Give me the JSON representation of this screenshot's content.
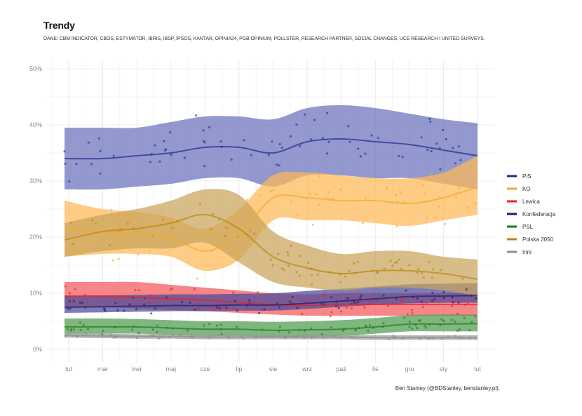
{
  "chart_data": {
    "type": "line",
    "title": "Trendy",
    "subtitle": "DANE: CBM INDICATOR, CBOS, ESTYMATOR, IBRIS, IBSP, IPSOS, KANTAR, OPINIA24, PGB OPINIUM, POLLSTER, RESEARCH PARTNER, SOCIAL CHANGES, UCE RESEARCH I UNITED SURVEYS.",
    "caption": "Ben Stanley (@BDStanley, benstanley.pl).",
    "xlabel": "",
    "ylabel": "",
    "x_ticks": [
      "lut",
      "mar",
      "kwi",
      "maj",
      "cze",
      "lip",
      "sie",
      "wrz",
      "paź",
      "lis",
      "gru",
      "sty",
      "lut"
    ],
    "y_ticks": [
      "0%",
      "10%",
      "20%",
      "30%",
      "40%",
      "50%"
    ],
    "ylim": [
      0,
      50
    ],
    "grid": true,
    "legend_position": "right",
    "series": [
      {
        "name": "PiS",
        "color": "#1f2a8a",
        "fill": "#6a71bb",
        "values": [
          34,
          34,
          34.5,
          35,
          36,
          36,
          35,
          37,
          37.5,
          37,
          36.5,
          35.5,
          34.5
        ],
        "lower": [
          28.5,
          28.5,
          29,
          29.5,
          30.5,
          30.5,
          29,
          31,
          31,
          30.5,
          30.5,
          29.5,
          28.5
        ],
        "upper": [
          39.5,
          39.5,
          39.5,
          40.5,
          41.5,
          41.5,
          41,
          43,
          43.5,
          43,
          42,
          41,
          40.3
        ]
      },
      {
        "name": "KO",
        "color": "#f7a82c",
        "fill": "#fdb955",
        "values": [
          21.5,
          21,
          20.5,
          20,
          17.5,
          20.5,
          27,
          27,
          26.5,
          26.5,
          26,
          27,
          29
        ],
        "lower": [
          16.5,
          17,
          17,
          16.5,
          14,
          16,
          23,
          23,
          23,
          22.5,
          22,
          23,
          24
        ],
        "upper": [
          26.5,
          25,
          24.5,
          23.5,
          21.5,
          25,
          31,
          31.5,
          31,
          30.5,
          30.5,
          31.5,
          34.5
        ]
      },
      {
        "name": "Lewica",
        "color": "#e3242b",
        "fill": "#f2575a",
        "values": [
          9.5,
          9.5,
          9.3,
          9,
          8.8,
          8.3,
          8,
          7.8,
          8,
          8,
          8,
          8,
          8
        ],
        "lower": [
          7.5,
          7.5,
          7.3,
          7,
          6.8,
          6.5,
          6.2,
          6,
          6,
          6,
          6,
          6,
          6
        ],
        "upper": [
          12,
          12,
          12,
          11.5,
          11,
          10.5,
          10,
          9.8,
          10,
          10,
          10,
          10,
          10
        ]
      },
      {
        "name": "Konfederacja",
        "color": "#1c1c6e",
        "fill": "#4a4a9a",
        "values": [
          7.5,
          7.6,
          7.7,
          7.8,
          7.8,
          7.9,
          7.9,
          8.2,
          8.6,
          9,
          9.4,
          9.5,
          9.6
        ],
        "lower": [
          6.5,
          6.6,
          6.7,
          6.8,
          6.8,
          6.9,
          6.9,
          7.2,
          7.6,
          7.9,
          8.2,
          8.3,
          8.3
        ],
        "upper": [
          9.5,
          9.6,
          9.7,
          9.8,
          9.8,
          9.9,
          10,
          10.4,
          10.8,
          11.2,
          11.6,
          11.7,
          11.8
        ]
      },
      {
        "name": "PSL",
        "color": "#1f7a1f",
        "fill": "#4e9b4e",
        "values": [
          4,
          4,
          4,
          3.8,
          3.6,
          3.6,
          3.4,
          3.5,
          3.6,
          4,
          4.5,
          4.5,
          4.6
        ],
        "lower": [
          2.8,
          2.8,
          2.8,
          2.6,
          2.4,
          2.4,
          2.2,
          2.3,
          2.4,
          2.8,
          3.2,
          3.2,
          3.2
        ],
        "upper": [
          5.5,
          5.5,
          5.4,
          5.2,
          5,
          5,
          4.9,
          5,
          5.2,
          5.6,
          6.1,
          6.2,
          6.2
        ]
      },
      {
        "name": "Polska 2050",
        "color": "#b8860b",
        "fill": "#c9a35a",
        "values": [
          19.5,
          21,
          21.5,
          22.5,
          24,
          21.5,
          16.5,
          14.5,
          13.5,
          14,
          14,
          13.5,
          12.5
        ],
        "lower": [
          16.5,
          17.5,
          18,
          18,
          19,
          15.5,
          12,
          11,
          10.5,
          11,
          11,
          10.5,
          9.5
        ],
        "upper": [
          22.5,
          24,
          25,
          26.5,
          28.5,
          27.5,
          21,
          18.5,
          17,
          17.5,
          17.5,
          16.5,
          16
        ]
      },
      {
        "name": "Inni",
        "color": "#8c8c8c",
        "fill": "#9a9a9a",
        "values": [
          2.5,
          2.4,
          2.3,
          2.3,
          2.2,
          2.2,
          2.2,
          2.2,
          2.2,
          2.1,
          2.1,
          2.1,
          2.1
        ],
        "lower": [
          2.1,
          2,
          1.9,
          1.9,
          1.8,
          1.8,
          1.8,
          1.8,
          1.8,
          1.7,
          1.7,
          1.7,
          1.7
        ],
        "upper": [
          2.9,
          2.8,
          2.7,
          2.7,
          2.6,
          2.6,
          2.6,
          2.6,
          2.6,
          2.5,
          2.5,
          2.5,
          2.5
        ]
      }
    ]
  }
}
